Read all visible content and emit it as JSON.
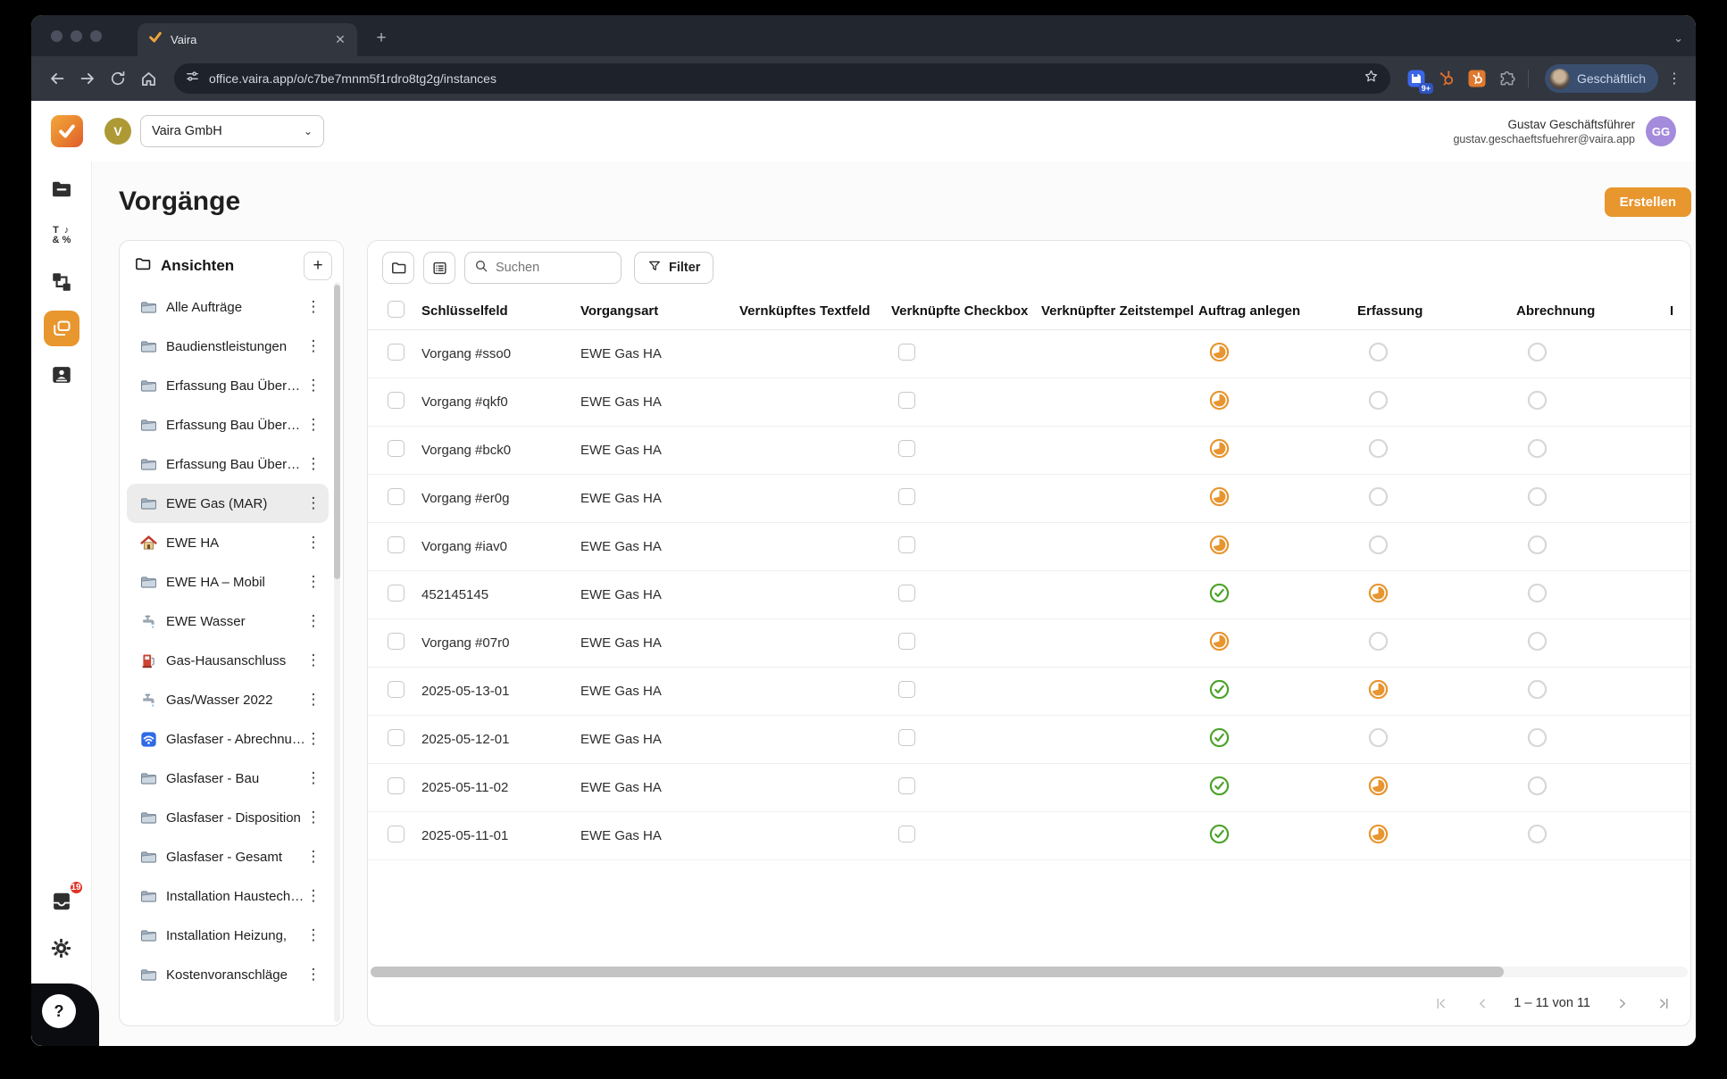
{
  "browser": {
    "tab_title": "Vaira",
    "url": "office.vaira.app/o/c7be7mnm5f1rdro8tg2g/instances",
    "extension_badge": "9+",
    "profile_chip": "Geschäftlich",
    "toolbar_icons": [
      "back-icon",
      "forward-icon",
      "reload-icon",
      "home-icon",
      "tune-icon",
      "star-icon",
      "save-collection-icon",
      "hubspot-outline-icon",
      "hubspot-icon",
      "extensions-puzzle-icon",
      "kebab-menu-icon"
    ]
  },
  "app_header": {
    "org_initial": "V",
    "org_name": "Vaira GmbH",
    "user_name": "Gustav Geschäftsführer",
    "user_email": "gustav.geschaeftsfuehrer@vaira.app",
    "user_initials": "GG"
  },
  "nav_rail": {
    "items": [
      {
        "icon": "folder-icon",
        "active": false
      },
      {
        "icon": "field-types-icon",
        "active": false
      },
      {
        "icon": "workflow-icon",
        "active": false
      },
      {
        "icon": "instances-icon",
        "active": true
      },
      {
        "icon": "contacts-icon",
        "active": false
      }
    ],
    "inbox_badge": "19"
  },
  "help_button": {
    "label": "?"
  },
  "page": {
    "title": "Vorgänge",
    "create_button": "Erstellen"
  },
  "views_panel": {
    "title": "Ansichten",
    "add_button": "+",
    "items": [
      {
        "icon": "folder-emoji-icon",
        "label": "Alle Aufträge",
        "selected": false
      },
      {
        "icon": "folder-emoji-icon",
        "label": "Baudienstleistungen",
        "selected": false
      },
      {
        "icon": "folder-emoji-icon",
        "label": "Erfassung Bau Übersicht",
        "selected": false
      },
      {
        "icon": "folder-emoji-icon",
        "label": "Erfassung Bau Übersicht",
        "selected": false
      },
      {
        "icon": "folder-emoji-icon",
        "label": "Erfassung Bau Übersicht",
        "selected": false
      },
      {
        "icon": "folder-emoji-icon",
        "label": "EWE Gas (MAR)",
        "selected": true
      },
      {
        "icon": "house-emoji-icon",
        "label": "EWE HA",
        "selected": false
      },
      {
        "icon": "folder-emoji-icon",
        "label": "EWE HA – Mobil",
        "selected": false
      },
      {
        "icon": "faucet-emoji-icon",
        "label": "EWE Wasser",
        "selected": false
      },
      {
        "icon": "fuel-pump-emoji-icon",
        "label": "Gas-Hausanschluss",
        "selected": false
      },
      {
        "icon": "faucet-emoji-icon",
        "label": "Gas/Wasser 2022",
        "selected": false
      },
      {
        "icon": "wireless-emoji-icon",
        "label": "Glasfaser - Abrechnung",
        "selected": false
      },
      {
        "icon": "folder-emoji-icon",
        "label": "Glasfaser - Bau",
        "selected": false
      },
      {
        "icon": "folder-emoji-icon",
        "label": "Glasfaser - Disposition",
        "selected": false
      },
      {
        "icon": "folder-emoji-icon",
        "label": "Glasfaser - Gesamt",
        "selected": false
      },
      {
        "icon": "folder-emoji-icon",
        "label": "Installation Haustechnik",
        "selected": false
      },
      {
        "icon": "folder-emoji-icon",
        "label": "Installation Heizung,",
        "selected": false
      },
      {
        "icon": "folder-emoji-icon",
        "label": "Kostenvoranschläge",
        "selected": false
      }
    ]
  },
  "table": {
    "toolbar": {
      "search_placeholder": "Suchen",
      "filter_button": "Filter"
    },
    "columns": [
      "Schlüsselfeld",
      "Vorgangsart",
      "Vernküpftes Textfeld",
      "Verknüpfte Checkbox",
      "Verknüpfter Zeitstempel",
      "Auftrag anlegen",
      "Erfassung",
      "Abrechnung"
    ],
    "clipped_column_hint": "I",
    "rows": [
      {
        "key": "Vorgang #sso0",
        "type": "EWE Gas HA",
        "textfeld": "",
        "checkbox_checked": false,
        "zeitstempel": "",
        "auftrag_anlegen": "progress",
        "erfassung": "pending",
        "abrechnung": "pending"
      },
      {
        "key": "Vorgang #qkf0",
        "type": "EWE Gas HA",
        "textfeld": "",
        "checkbox_checked": false,
        "zeitstempel": "",
        "auftrag_anlegen": "progress",
        "erfassung": "pending",
        "abrechnung": "pending"
      },
      {
        "key": "Vorgang #bck0",
        "type": "EWE Gas HA",
        "textfeld": "",
        "checkbox_checked": false,
        "zeitstempel": "",
        "auftrag_anlegen": "progress",
        "erfassung": "pending",
        "abrechnung": "pending"
      },
      {
        "key": "Vorgang #er0g",
        "type": "EWE Gas HA",
        "textfeld": "",
        "checkbox_checked": false,
        "zeitstempel": "",
        "auftrag_anlegen": "progress",
        "erfassung": "pending",
        "abrechnung": "pending"
      },
      {
        "key": "Vorgang #iav0",
        "type": "EWE Gas HA",
        "textfeld": "",
        "checkbox_checked": false,
        "zeitstempel": "",
        "auftrag_anlegen": "progress",
        "erfassung": "pending",
        "abrechnung": "pending"
      },
      {
        "key": "452145145",
        "type": "EWE Gas HA",
        "textfeld": "",
        "checkbox_checked": false,
        "zeitstempel": "",
        "auftrag_anlegen": "done",
        "erfassung": "progress",
        "abrechnung": "pending"
      },
      {
        "key": "Vorgang #07r0",
        "type": "EWE Gas HA",
        "textfeld": "",
        "checkbox_checked": false,
        "zeitstempel": "",
        "auftrag_anlegen": "progress",
        "erfassung": "pending",
        "abrechnung": "pending"
      },
      {
        "key": "2025-05-13-01",
        "type": "EWE Gas HA",
        "textfeld": "",
        "checkbox_checked": false,
        "zeitstempel": "",
        "auftrag_anlegen": "done",
        "erfassung": "progress",
        "abrechnung": "pending"
      },
      {
        "key": "2025-05-12-01",
        "type": "EWE Gas HA",
        "textfeld": "",
        "checkbox_checked": false,
        "zeitstempel": "",
        "auftrag_anlegen": "done",
        "erfassung": "pending",
        "abrechnung": "pending"
      },
      {
        "key": "2025-05-11-02",
        "type": "EWE Gas HA",
        "textfeld": "",
        "checkbox_checked": false,
        "zeitstempel": "",
        "auftrag_anlegen": "done",
        "erfassung": "progress",
        "abrechnung": "pending"
      },
      {
        "key": "2025-05-11-01",
        "type": "EWE Gas HA",
        "textfeld": "",
        "checkbox_checked": false,
        "zeitstempel": "",
        "auftrag_anlegen": "done",
        "erfassung": "progress",
        "abrechnung": "pending"
      }
    ],
    "pagination": {
      "range_label": "1 – 11 von 11"
    }
  },
  "colors": {
    "accent": "#E8962E",
    "status_done": "#4BA32A",
    "status_progress": "#E8952F",
    "status_pending": "#D7D7D7",
    "badge_red": "#E03226",
    "selected_view_bg": "#ECECEC",
    "avatar_purple": "#A58BDB",
    "avatar_olive": "#AD9A35"
  }
}
